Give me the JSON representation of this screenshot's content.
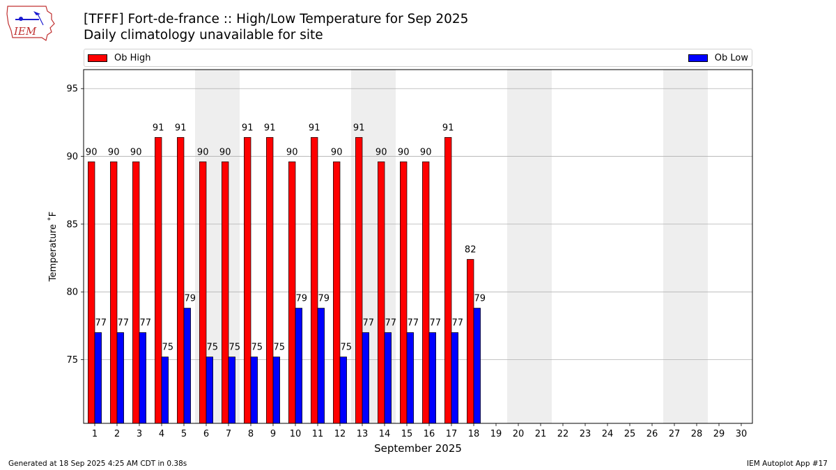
{
  "chart_data": {
    "type": "bar",
    "title": "[TFFF] Fort-de-france :: High/Low Temperature for Sep 2025",
    "subtitle": "Daily climatology unavailable for site",
    "xlabel": "September 2025",
    "ylabel": "Temperature ˚F",
    "ylim": [
      70.3,
      96.4
    ],
    "yticks": [
      75,
      80,
      85,
      90,
      95
    ],
    "xticks": [
      "1",
      "2",
      "3",
      "4",
      "5",
      "6",
      "7",
      "8",
      "9",
      "10",
      "11",
      "12",
      "13",
      "14",
      "15",
      "16",
      "17",
      "18",
      "19",
      "20",
      "21",
      "22",
      "23",
      "24",
      "25",
      "26",
      "27",
      "28",
      "29",
      "30"
    ],
    "grid": "horizontal",
    "legend_placement": "top (above plot)",
    "weekend_shading": [
      [
        6,
        7
      ],
      [
        13,
        14
      ],
      [
        20,
        21
      ],
      [
        27,
        28
      ]
    ],
    "series": [
      {
        "name": "Ob High",
        "color": "#ff0000",
        "values": [
          89.6,
          89.6,
          89.6,
          91.4,
          91.4,
          89.6,
          89.6,
          91.4,
          91.4,
          89.6,
          91.4,
          89.6,
          91.4,
          89.6,
          89.6,
          89.6,
          91.4,
          82.4
        ],
        "labels": [
          "90",
          "90",
          "90",
          "91",
          "91",
          "90",
          "90",
          "91",
          "91",
          "90",
          "91",
          "90",
          "91",
          "90",
          "90",
          "90",
          "91",
          "82"
        ]
      },
      {
        "name": "Ob Low",
        "color": "#0000ff",
        "values": [
          77.0,
          77.0,
          77.0,
          75.2,
          78.8,
          75.2,
          75.2,
          75.2,
          75.2,
          78.8,
          78.8,
          75.2,
          77.0,
          77.0,
          77.0,
          77.0,
          77.0,
          78.8
        ],
        "labels": [
          "77",
          "77",
          "77",
          "75",
          "79",
          "75",
          "75",
          "75",
          "75",
          "79",
          "79",
          "75",
          "77",
          "77",
          "77",
          "77",
          "77",
          "79"
        ]
      }
    ]
  },
  "legend": {
    "high_label": "Ob High",
    "low_label": "Ob Low"
  },
  "footer": {
    "generated": "Generated at 18 Sep 2025 4:25 AM CDT in 0.38s",
    "app": "IEM Autoplot App #17"
  },
  "logo": {
    "text": "IEM"
  }
}
